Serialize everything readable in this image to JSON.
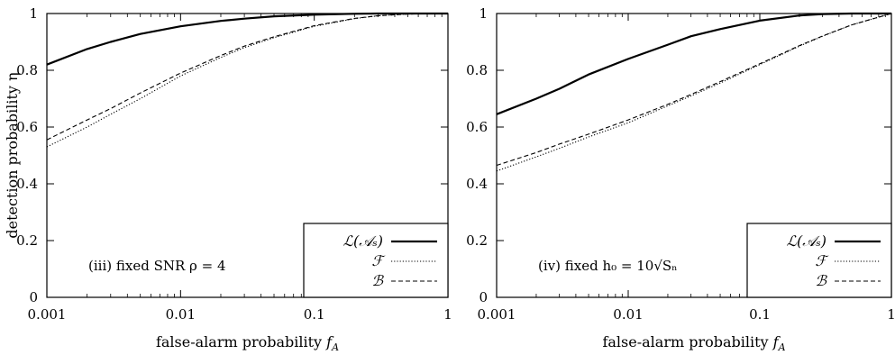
{
  "chart_data": [
    {
      "type": "line",
      "panel": "left",
      "xlabel": "false-alarm probability f_A",
      "ylabel": "detection probability η",
      "xscale": "log",
      "xlim": [
        0.001,
        1
      ],
      "ylim": [
        0,
        1
      ],
      "xticks": [
        "0.001",
        "0.01",
        "0.1",
        "1"
      ],
      "yticks": [
        "0",
        "0.2",
        "0.4",
        "0.6",
        "0.8",
        "1"
      ],
      "annotation": "(iii) fixed SNR ρ = 4",
      "legend_position": "bottom-right",
      "series": [
        {
          "name": "ℒ(𝒜ₛ)",
          "style": "solid-thick",
          "x": [
            0.001,
            0.002,
            0.003,
            0.005,
            0.01,
            0.02,
            0.03,
            0.05,
            0.1,
            0.2,
            0.3,
            0.5,
            1
          ],
          "y": [
            0.82,
            0.875,
            0.9,
            0.928,
            0.955,
            0.974,
            0.982,
            0.99,
            0.996,
            0.999,
            1.0,
            1.0,
            1.0
          ]
        },
        {
          "name": "ℱ",
          "style": "dotted",
          "x": [
            0.001,
            0.002,
            0.003,
            0.005,
            0.01,
            0.02,
            0.03,
            0.05,
            0.1,
            0.2,
            0.3,
            0.5,
            1
          ],
          "y": [
            0.53,
            0.6,
            0.645,
            0.7,
            0.78,
            0.845,
            0.88,
            0.915,
            0.955,
            0.982,
            0.992,
            0.998,
            1.0
          ]
        },
        {
          "name": "ℬ",
          "style": "dashed",
          "x": [
            0.001,
            0.002,
            0.003,
            0.005,
            0.01,
            0.02,
            0.03,
            0.05,
            0.1,
            0.2,
            0.3,
            0.5,
            1
          ],
          "y": [
            0.555,
            0.625,
            0.665,
            0.72,
            0.79,
            0.852,
            0.885,
            0.918,
            0.957,
            0.983,
            0.992,
            0.998,
            1.0
          ]
        }
      ]
    },
    {
      "type": "line",
      "panel": "right",
      "xlabel": "false-alarm probability f_A",
      "xscale": "log",
      "xlim": [
        0.001,
        1
      ],
      "ylim": [
        0,
        1
      ],
      "xticks": [
        "0.001",
        "0.01",
        "0.1",
        "1"
      ],
      "yticks": [
        "0",
        "0.2",
        "0.4",
        "0.6",
        "0.8",
        "1"
      ],
      "annotation": "(iv) fixed h₀ = 10√Sₙ",
      "legend_position": "bottom-right",
      "series": [
        {
          "name": "ℒ(𝒜ₛ)",
          "style": "solid-thick",
          "x": [
            0.001,
            0.002,
            0.003,
            0.005,
            0.01,
            0.02,
            0.03,
            0.05,
            0.1,
            0.2,
            0.3,
            0.5,
            1
          ],
          "y": [
            0.645,
            0.7,
            0.735,
            0.785,
            0.84,
            0.89,
            0.92,
            0.945,
            0.975,
            0.993,
            0.998,
            1.0,
            1.0
          ]
        },
        {
          "name": "ℱ",
          "style": "dotted",
          "x": [
            0.001,
            0.002,
            0.003,
            0.005,
            0.01,
            0.02,
            0.03,
            0.05,
            0.1,
            0.2,
            0.3,
            0.5,
            1
          ],
          "y": [
            0.445,
            0.495,
            0.525,
            0.565,
            0.615,
            0.675,
            0.71,
            0.755,
            0.82,
            0.885,
            0.92,
            0.96,
            1.0
          ]
        },
        {
          "name": "ℬ",
          "style": "dashed",
          "x": [
            0.001,
            0.002,
            0.003,
            0.005,
            0.01,
            0.02,
            0.03,
            0.05,
            0.1,
            0.2,
            0.3,
            0.5,
            1
          ],
          "y": [
            0.465,
            0.51,
            0.54,
            0.575,
            0.625,
            0.68,
            0.715,
            0.76,
            0.823,
            0.887,
            0.921,
            0.96,
            1.0
          ]
        }
      ]
    }
  ]
}
